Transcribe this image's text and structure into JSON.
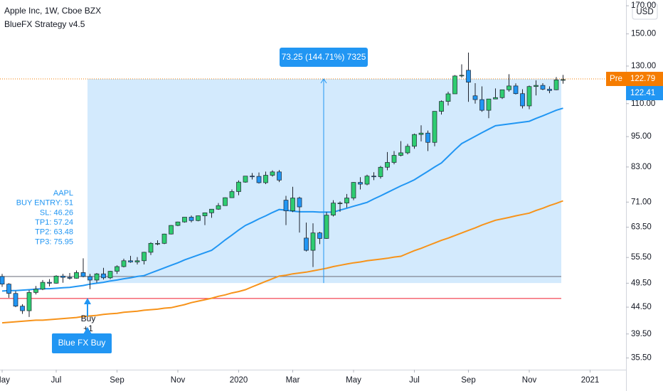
{
  "chart_data": {
    "type": "candlestick",
    "title": "Apple Inc, 1W, Cboe BZX",
    "subtitle": "BlueFX Strategy v4.5",
    "currency": "USD",
    "log": true,
    "grid": false,
    "ylim": [
      33.7,
      174.4
    ],
    "yticks": [
      {
        "value": 170,
        "label": "170.00"
      },
      {
        "value": 150,
        "label": "150.00"
      },
      {
        "value": 130,
        "label": "130.00"
      },
      {
        "value": 110,
        "label": "110.00"
      },
      {
        "value": 95,
        "label": "95.00"
      },
      {
        "value": 83,
        "label": "83.00"
      },
      {
        "value": 71,
        "label": "71.00"
      },
      {
        "value": 63.5,
        "label": "63.50"
      },
      {
        "value": 55.5,
        "label": "55.50"
      },
      {
        "value": 49.5,
        "label": "49.50"
      },
      {
        "value": 44.5,
        "label": "44.50"
      },
      {
        "value": 39.5,
        "label": "39.50"
      },
      {
        "value": 35.5,
        "label": "35.50"
      }
    ],
    "categories": [
      "May",
      null,
      null,
      null,
      null,
      null,
      null,
      null,
      "Jul",
      null,
      null,
      null,
      null,
      null,
      null,
      null,
      null,
      "Sep",
      null,
      null,
      null,
      null,
      null,
      null,
      null,
      null,
      "Nov",
      null,
      null,
      null,
      null,
      null,
      null,
      null,
      null,
      "2020",
      null,
      null,
      null,
      null,
      null,
      null,
      null,
      "Mar",
      null,
      null,
      null,
      null,
      null,
      null,
      null,
      null,
      "May",
      null,
      null,
      null,
      null,
      null,
      null,
      null,
      null,
      "Jul",
      null,
      null,
      null,
      null,
      null,
      null,
      null,
      "Sep",
      null,
      null,
      null,
      null,
      null,
      null,
      null,
      null,
      "Nov",
      null,
      null,
      null,
      null,
      null,
      null,
      null,
      null,
      "2021"
    ],
    "up_color": "#2ecc71",
    "down_color": "#2196f3",
    "open": [
      51.0,
      49.3,
      47.3,
      44.7,
      43.8,
      47.5,
      48.2,
      49.7,
      49.5,
      51.1,
      50.8,
      50.6,
      51.9,
      51.0,
      50.2,
      51.6,
      50.7,
      52.2,
      53.3,
      54.7,
      54.4,
      54.7,
      56.8,
      59.1,
      59.1,
      61.6,
      64.0,
      65.0,
      66.4,
      65.4,
      66.8,
      67.7,
      68.8,
      69.9,
      72.4,
      74.4,
      77.6,
      79.7,
      79.6,
      77.4,
      80.0,
      81.2,
      71.6,
      68.3,
      72.3,
      60.5,
      57.3,
      61.9,
      60.4,
      67.0,
      70.7,
      70.7,
      72.3,
      77.5,
      76.9,
      79.7,
      79.5,
      82.9,
      84.7,
      87.4,
      88.4,
      91.0,
      95.9,
      96.5,
      92.6,
      106.3,
      111.1,
      114.9,
      124.4,
      127.6,
      113.9,
      112.0,
      106.8,
      112.3,
      113.0,
      117.0,
      119.0,
      115.0,
      108.9,
      118.7,
      119.3,
      117.3,
      117.0,
      122.3,
      null,
      null,
      null,
      null
    ],
    "high": [
      51.6,
      49.5,
      47.8,
      45.1,
      48.0,
      48.9,
      50.2,
      50.4,
      51.3,
      51.6,
      51.8,
      52.4,
      55.3,
      51.6,
      51.8,
      53.0,
      52.3,
      53.6,
      55.2,
      55.9,
      55.6,
      56.9,
      59.4,
      59.9,
      61.7,
      64.1,
      65.1,
      66.4,
      66.9,
      66.9,
      67.8,
      68.8,
      70.7,
      72.5,
      75.1,
      78.2,
      79.7,
      80.8,
      81.0,
      81.3,
      81.8,
      81.9,
      73.0,
      76.0,
      72.7,
      64.8,
      64.6,
      62.2,
      67.9,
      71.6,
      71.2,
      73.6,
      77.6,
      79.3,
      80.2,
      81.1,
      83.4,
      88.7,
      89.1,
      93.1,
      92.0,
      96.3,
      99.9,
      97.6,
      106.4,
      111.6,
      116.0,
      124.9,
      131.0,
      138.0,
      120.5,
      118.8,
      112.4,
      117.7,
      117.0,
      125.4,
      120.4,
      117.3,
      119.2,
      122.0,
      120.5,
      118.8,
      123.8,
      125.0,
      null,
      null,
      null,
      null
    ],
    "low": [
      48.7,
      46.4,
      44.5,
      43.2,
      42.6,
      47.1,
      48.0,
      48.8,
      49.4,
      49.6,
      50.3,
      50.5,
      50.8,
      48.2,
      49.6,
      50.3,
      50.4,
      51.6,
      53.1,
      54.2,
      53.8,
      53.8,
      56.1,
      58.6,
      58.9,
      61.5,
      63.8,
      64.8,
      64.9,
      65.2,
      64.1,
      66.2,
      68.6,
      69.9,
      72.3,
      73.2,
      77.4,
      78.5,
      77.1,
      76.9,
      79.5,
      77.6,
      64.1,
      67.9,
      62.0,
      57.0,
      53.2,
      58.9,
      60.3,
      66.6,
      68.0,
      69.3,
      71.6,
      75.1,
      76.5,
      78.3,
      78.8,
      81.8,
      84.0,
      87.0,
      87.8,
      90.0,
      93.0,
      89.1,
      91.0,
      104.8,
      109.1,
      114.9,
      123.5,
      110.9,
      110.0,
      106.1,
      103.1,
      112.2,
      112.3,
      116.0,
      114.6,
      107.7,
      107.3,
      114.1,
      116.8,
      115.2,
      116.8,
      120.2,
      null,
      null,
      null,
      null
    ],
    "close": [
      49.3,
      47.3,
      44.7,
      43.8,
      47.5,
      48.2,
      49.7,
      49.5,
      51.1,
      50.8,
      50.6,
      51.9,
      51.0,
      50.2,
      51.6,
      50.7,
      52.2,
      53.3,
      54.7,
      54.4,
      54.7,
      56.8,
      59.1,
      59.1,
      61.6,
      64.0,
      65.0,
      66.4,
      65.4,
      66.8,
      67.7,
      68.8,
      69.9,
      72.4,
      74.4,
      77.6,
      79.7,
      79.6,
      77.4,
      80.0,
      81.2,
      78.3,
      68.3,
      72.3,
      69.5,
      57.3,
      61.9,
      60.4,
      67.0,
      70.7,
      70.7,
      72.3,
      77.5,
      76.9,
      79.7,
      79.5,
      82.9,
      84.7,
      87.4,
      88.4,
      91.0,
      95.9,
      96.5,
      92.6,
      106.3,
      111.1,
      114.9,
      124.4,
      124.8,
      121.0,
      112.0,
      106.8,
      112.3,
      113.0,
      117.0,
      119.0,
      115.0,
      108.9,
      118.7,
      119.3,
      117.3,
      116.6,
      122.25,
      122.41,
      null,
      null,
      null,
      null
    ],
    "lines": [
      {
        "color": "#2196f3",
        "values": [
          47.8,
          47.9,
          47.9,
          48.0,
          48.1,
          48.2,
          48.3,
          48.3,
          48.4,
          48.5,
          48.6,
          48.8,
          49.0,
          49.3,
          49.5,
          49.7,
          50.0,
          50.2,
          50.5,
          50.7,
          51.0,
          51.2,
          51.8,
          52.4,
          53.0,
          53.6,
          54.2,
          54.9,
          55.5,
          56.1,
          56.7,
          57.3,
          58.6,
          60.0,
          61.3,
          62.7,
          64.0,
          64.9,
          65.9,
          66.8,
          67.8,
          68.7,
          68.5,
          68.2,
          68.0,
          68.0,
          68.0,
          67.9,
          67.9,
          67.9,
          68.5,
          69.1,
          69.7,
          70.3,
          70.9,
          72.0,
          73.0,
          74.1,
          75.2,
          76.3,
          77.3,
          78.4,
          79.9,
          81.4,
          83.0,
          84.5,
          87.0,
          89.6,
          92.1,
          93.6,
          95.1,
          96.7,
          98.2,
          99.7,
          100.1,
          100.5,
          100.9,
          101.3,
          101.7,
          103.0,
          104.2,
          105.5,
          106.8,
          107.8,
          null,
          null,
          null,
          null
        ]
      },
      {
        "color": "#f7931a",
        "values": [
          41.5,
          41.6,
          41.7,
          41.8,
          41.9,
          42.0,
          42.0,
          42.1,
          42.2,
          42.3,
          42.4,
          42.5,
          42.7,
          42.8,
          42.9,
          43.1,
          43.2,
          43.3,
          43.5,
          43.6,
          43.7,
          43.9,
          44.0,
          44.1,
          44.3,
          44.4,
          44.7,
          45.0,
          45.4,
          45.7,
          46.0,
          46.3,
          46.7,
          47.0,
          47.4,
          47.7,
          48.1,
          48.7,
          49.3,
          49.9,
          50.5,
          51.1,
          51.3,
          51.6,
          51.8,
          52.0,
          52.3,
          52.6,
          52.9,
          53.3,
          53.6,
          53.9,
          54.2,
          54.4,
          54.7,
          54.9,
          55.1,
          55.3,
          55.6,
          55.8,
          56.5,
          57.2,
          57.8,
          58.5,
          59.2,
          59.9,
          60.5,
          61.2,
          61.9,
          62.6,
          63.3,
          64.1,
          64.8,
          65.5,
          65.9,
          66.3,
          66.8,
          67.2,
          67.6,
          68.4,
          69.1,
          69.9,
          70.6,
          71.4,
          null,
          null,
          null,
          null
        ]
      }
    ],
    "levels": [
      {
        "value": 51,
        "color": "#787b86"
      },
      {
        "value": 46.26,
        "color": "#f23645"
      }
    ],
    "measure": {
      "label": "73.25 (144.71%) 7325",
      "low": 49.54,
      "high": 122.79,
      "color": "#2196f3"
    },
    "price_labels": [
      {
        "text": "Pre",
        "value": 122.79,
        "label": "122.79",
        "color": "#f57c00"
      },
      {
        "value": 122.41,
        "label": "122.41",
        "color": "#2196f3"
      }
    ],
    "info": [
      "AAPL",
      "BUY ENTRY: 51",
      "SL: 46.26",
      "TP1: 57.24",
      "TP2: 63.48",
      "TP3: 75.95"
    ],
    "signal": {
      "label": "Buy",
      "count": "+1",
      "button": "Blue FX Buy"
    }
  }
}
